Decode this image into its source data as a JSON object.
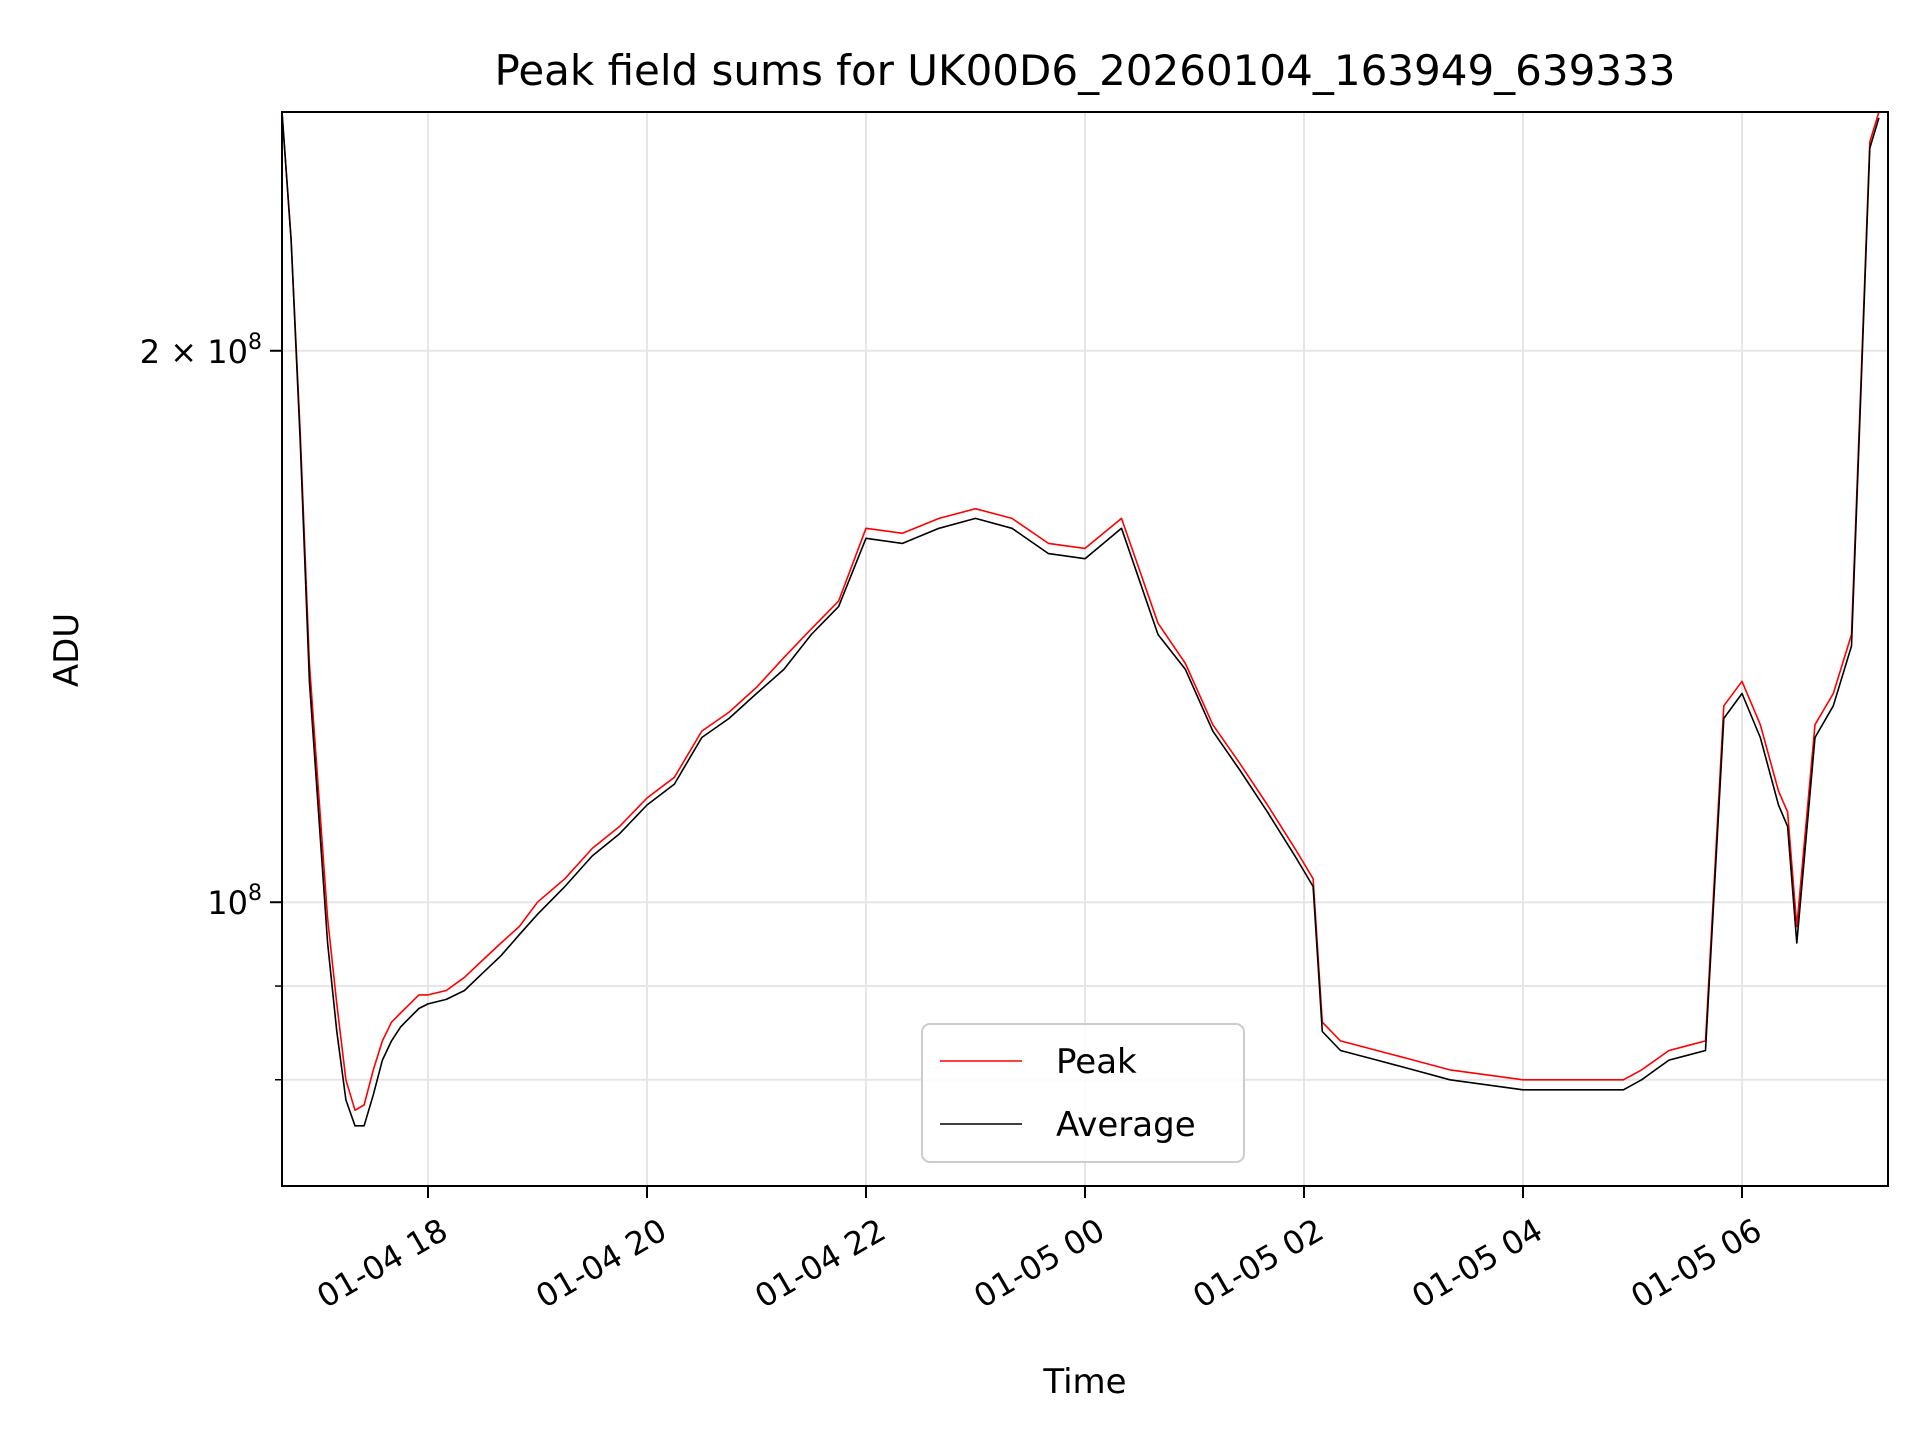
{
  "chart_data": {
    "type": "line",
    "title": "Peak field sums for UK00D6_20260104_163949_639333",
    "xlabel": "Time",
    "ylabel": "ADU",
    "yscale": "log",
    "ylim": [
      70000000,
      270000000
    ],
    "xlim": [
      "2026-01-04 16:40",
      "2026-01-05 07:20"
    ],
    "grid": true,
    "legend_position": "lower center",
    "x_ticks": [
      {
        "value": "2026-01-04 18:00",
        "label": "01-04 18"
      },
      {
        "value": "2026-01-04 20:00",
        "label": "01-04 20"
      },
      {
        "value": "2026-01-04 22:00",
        "label": "01-04 22"
      },
      {
        "value": "2026-01-05 00:00",
        "label": "01-05 00"
      },
      {
        "value": "2026-01-05 02:00",
        "label": "01-05 02"
      },
      {
        "value": "2026-01-05 04:00",
        "label": "01-05 04"
      },
      {
        "value": "2026-01-05 06:00",
        "label": "01-05 06"
      }
    ],
    "y_ticks": [
      {
        "value": 100000000,
        "base": "10",
        "exp": "8",
        "mult": ""
      },
      {
        "value": 200000000,
        "base": "10",
        "exp": "8",
        "mult": "2 × "
      }
    ],
    "y_minor_ticks": [
      80000000,
      90000000
    ],
    "series": [
      {
        "name": "Peak",
        "color": "#ff0000",
        "x": [
          "2026-01-04 16:40",
          "2026-01-04 16:45",
          "2026-01-04 16:50",
          "2026-01-04 16:55",
          "2026-01-04 17:00",
          "2026-01-04 17:05",
          "2026-01-04 17:10",
          "2026-01-04 17:15",
          "2026-01-04 17:20",
          "2026-01-04 17:25",
          "2026-01-04 17:30",
          "2026-01-04 17:35",
          "2026-01-04 17:40",
          "2026-01-04 17:45",
          "2026-01-04 17:50",
          "2026-01-04 17:55",
          "2026-01-04 18:00",
          "2026-01-04 18:10",
          "2026-01-04 18:20",
          "2026-01-04 18:30",
          "2026-01-04 18:40",
          "2026-01-04 18:50",
          "2026-01-04 19:00",
          "2026-01-04 19:15",
          "2026-01-04 19:30",
          "2026-01-04 19:45",
          "2026-01-04 20:00",
          "2026-01-04 20:15",
          "2026-01-04 20:30",
          "2026-01-04 20:45",
          "2026-01-04 21:00",
          "2026-01-04 21:15",
          "2026-01-04 21:30",
          "2026-01-04 21:45",
          "2026-01-04 22:00",
          "2026-01-04 22:20",
          "2026-01-04 22:40",
          "2026-01-04 23:00",
          "2026-01-04 23:20",
          "2026-01-04 23:40",
          "2026-01-05 00:00",
          "2026-01-05 00:20",
          "2026-01-05 00:40",
          "2026-01-05 00:55",
          "2026-01-05 01:10",
          "2026-01-05 01:25",
          "2026-01-05 01:40",
          "2026-01-05 01:55",
          "2026-01-05 02:05",
          "2026-01-05 02:10",
          "2026-01-05 02:20",
          "2026-01-05 02:40",
          "2026-01-05 03:00",
          "2026-01-05 03:20",
          "2026-01-05 03:40",
          "2026-01-05 04:00",
          "2026-01-05 04:20",
          "2026-01-05 04:40",
          "2026-01-05 04:55",
          "2026-01-05 05:05",
          "2026-01-05 05:20",
          "2026-01-05 05:30",
          "2026-01-05 05:40",
          "2026-01-05 05:50",
          "2026-01-05 06:00",
          "2026-01-05 06:10",
          "2026-01-05 06:20",
          "2026-01-05 06:25",
          "2026-01-05 06:30",
          "2026-01-05 06:40",
          "2026-01-05 06:50",
          "2026-01-05 07:00",
          "2026-01-05 07:05",
          "2026-01-05 07:10",
          "2026-01-05 07:15"
        ],
        "y": [
          270000000,
          230000000,
          180000000,
          135000000,
          115000000,
          98000000,
          88000000,
          80000000,
          77000000,
          77500000,
          81000000,
          84000000,
          86000000,
          87000000,
          88000000,
          89000000,
          89000000,
          89500000,
          91000000,
          93000000,
          95000000,
          97000000,
          100000000,
          103000000,
          107000000,
          110000000,
          114000000,
          117000000,
          124000000,
          127000000,
          131000000,
          136000000,
          141000000,
          146000000,
          160000000,
          159000000,
          162000000,
          164000000,
          162000000,
          157000000,
          156000000,
          162000000,
          142000000,
          135000000,
          125000000,
          119000000,
          113000000,
          107000000,
          103000000,
          86000000,
          84000000,
          83000000,
          82000000,
          81000000,
          80500000,
          80000000,
          80000000,
          80000000,
          80000000,
          81000000,
          83000000,
          83500000,
          84000000,
          128000000,
          132000000,
          125000000,
          115000000,
          112000000,
          97000000,
          125000000,
          130000000,
          140000000,
          190000000,
          260000000,
          270000000
        ]
      },
      {
        "name": "Average",
        "color": "#000000",
        "x": [
          "2026-01-04 16:40",
          "2026-01-04 16:45",
          "2026-01-04 16:50",
          "2026-01-04 16:55",
          "2026-01-04 17:00",
          "2026-01-04 17:05",
          "2026-01-04 17:10",
          "2026-01-04 17:15",
          "2026-01-04 17:20",
          "2026-01-04 17:25",
          "2026-01-04 17:30",
          "2026-01-04 17:35",
          "2026-01-04 17:40",
          "2026-01-04 17:45",
          "2026-01-04 17:50",
          "2026-01-04 17:55",
          "2026-01-04 18:00",
          "2026-01-04 18:10",
          "2026-01-04 18:20",
          "2026-01-04 18:30",
          "2026-01-04 18:40",
          "2026-01-04 18:50",
          "2026-01-04 19:00",
          "2026-01-04 19:15",
          "2026-01-04 19:30",
          "2026-01-04 19:45",
          "2026-01-04 20:00",
          "2026-01-04 20:15",
          "2026-01-04 20:30",
          "2026-01-04 20:45",
          "2026-01-04 21:00",
          "2026-01-04 21:15",
          "2026-01-04 21:30",
          "2026-01-04 21:45",
          "2026-01-04 22:00",
          "2026-01-04 22:20",
          "2026-01-04 22:40",
          "2026-01-04 23:00",
          "2026-01-04 23:20",
          "2026-01-04 23:40",
          "2026-01-05 00:00",
          "2026-01-05 00:20",
          "2026-01-05 00:40",
          "2026-01-05 00:55",
          "2026-01-05 01:10",
          "2026-01-05 01:25",
          "2026-01-05 01:40",
          "2026-01-05 01:55",
          "2026-01-05 02:05",
          "2026-01-05 02:10",
          "2026-01-05 02:20",
          "2026-01-05 02:40",
          "2026-01-05 03:00",
          "2026-01-05 03:20",
          "2026-01-05 03:40",
          "2026-01-05 04:00",
          "2026-01-05 04:20",
          "2026-01-05 04:40",
          "2026-01-05 04:55",
          "2026-01-05 05:05",
          "2026-01-05 05:20",
          "2026-01-05 05:30",
          "2026-01-05 05:40",
          "2026-01-05 05:50",
          "2026-01-05 06:00",
          "2026-01-05 06:10",
          "2026-01-05 06:20",
          "2026-01-05 06:25",
          "2026-01-05 06:30",
          "2026-01-05 06:40",
          "2026-01-05 06:50",
          "2026-01-05 07:00",
          "2026-01-05 07:05",
          "2026-01-05 07:10",
          "2026-01-05 07:15"
        ],
        "y": [
          270000000,
          230000000,
          178000000,
          132000000,
          112000000,
          95000000,
          85000000,
          78000000,
          75500000,
          75500000,
          78500000,
          82000000,
          84000000,
          85500000,
          86500000,
          87500000,
          88000000,
          88500000,
          89500000,
          91500000,
          93500000,
          96000000,
          98500000,
          102000000,
          106000000,
          109000000,
          113000000,
          116000000,
          123000000,
          126000000,
          130000000,
          134000000,
          140000000,
          145000000,
          158000000,
          157000000,
          160000000,
          162000000,
          160000000,
          155000000,
          154000000,
          160000000,
          140000000,
          134000000,
          124000000,
          118000000,
          112000000,
          106000000,
          102000000,
          85000000,
          83000000,
          82000000,
          81000000,
          80000000,
          79500000,
          79000000,
          79000000,
          79000000,
          79000000,
          80000000,
          82000000,
          82500000,
          83000000,
          126000000,
          130000000,
          123000000,
          113000000,
          110000000,
          95000000,
          123000000,
          128000000,
          138000000,
          188000000,
          258000000,
          268000000
        ]
      }
    ],
    "legend": [
      {
        "label": "Peak",
        "color": "#ff0000"
      },
      {
        "label": "Average",
        "color": "#000000"
      }
    ]
  }
}
